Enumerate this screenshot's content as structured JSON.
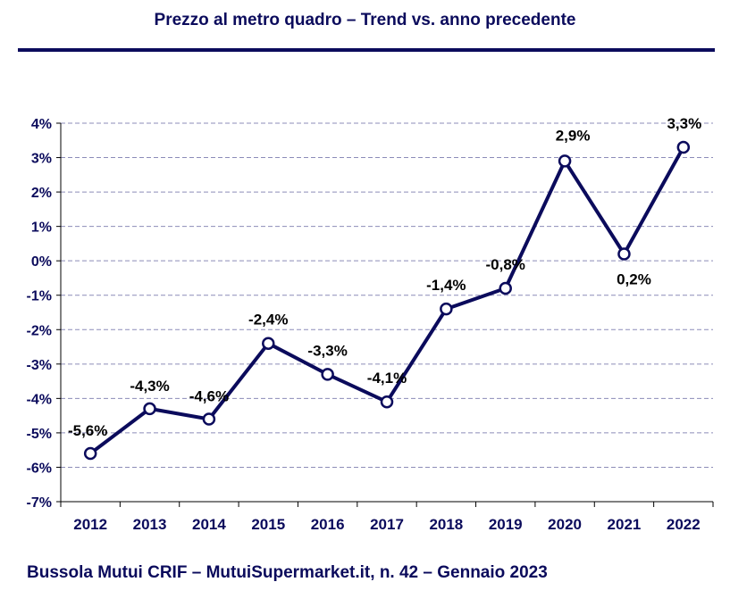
{
  "title": "Prezzo al metro quadro – Trend vs. anno precedente",
  "footer": "Bussola Mutui CRIF – MutuiSupermarket.it, n. 42 – Gennaio 2023",
  "colors": {
    "line": "#0b0b5c",
    "grid": "#8c8cb8",
    "text": "#0b0b5c"
  },
  "chart_data": {
    "type": "line",
    "x": [
      "2012",
      "2013",
      "2014",
      "2015",
      "2016",
      "2017",
      "2018",
      "2019",
      "2020",
      "2021",
      "2022"
    ],
    "series": [
      {
        "values": [
          -5.6,
          -4.3,
          -4.6,
          -2.4,
          -3.3,
          -4.1,
          -1.4,
          -0.8,
          2.9,
          0.2,
          3.3
        ]
      }
    ],
    "data_labels": [
      "-5,6%",
      "-4,3%",
      "-4,6%",
      "-2,4%",
      "-3,3%",
      "-4,1%",
      "-1,4%",
      "-0,8%",
      "2,9%",
      "0,2%",
      "3,3%"
    ],
    "y_ticks": [
      "4%",
      "3%",
      "2%",
      "1%",
      "0%",
      "-1%",
      "-2%",
      "-3%",
      "-4%",
      "-5%",
      "-6%",
      "-7%"
    ],
    "ylim": [
      -7,
      4
    ],
    "grid": true,
    "legend": "none"
  }
}
